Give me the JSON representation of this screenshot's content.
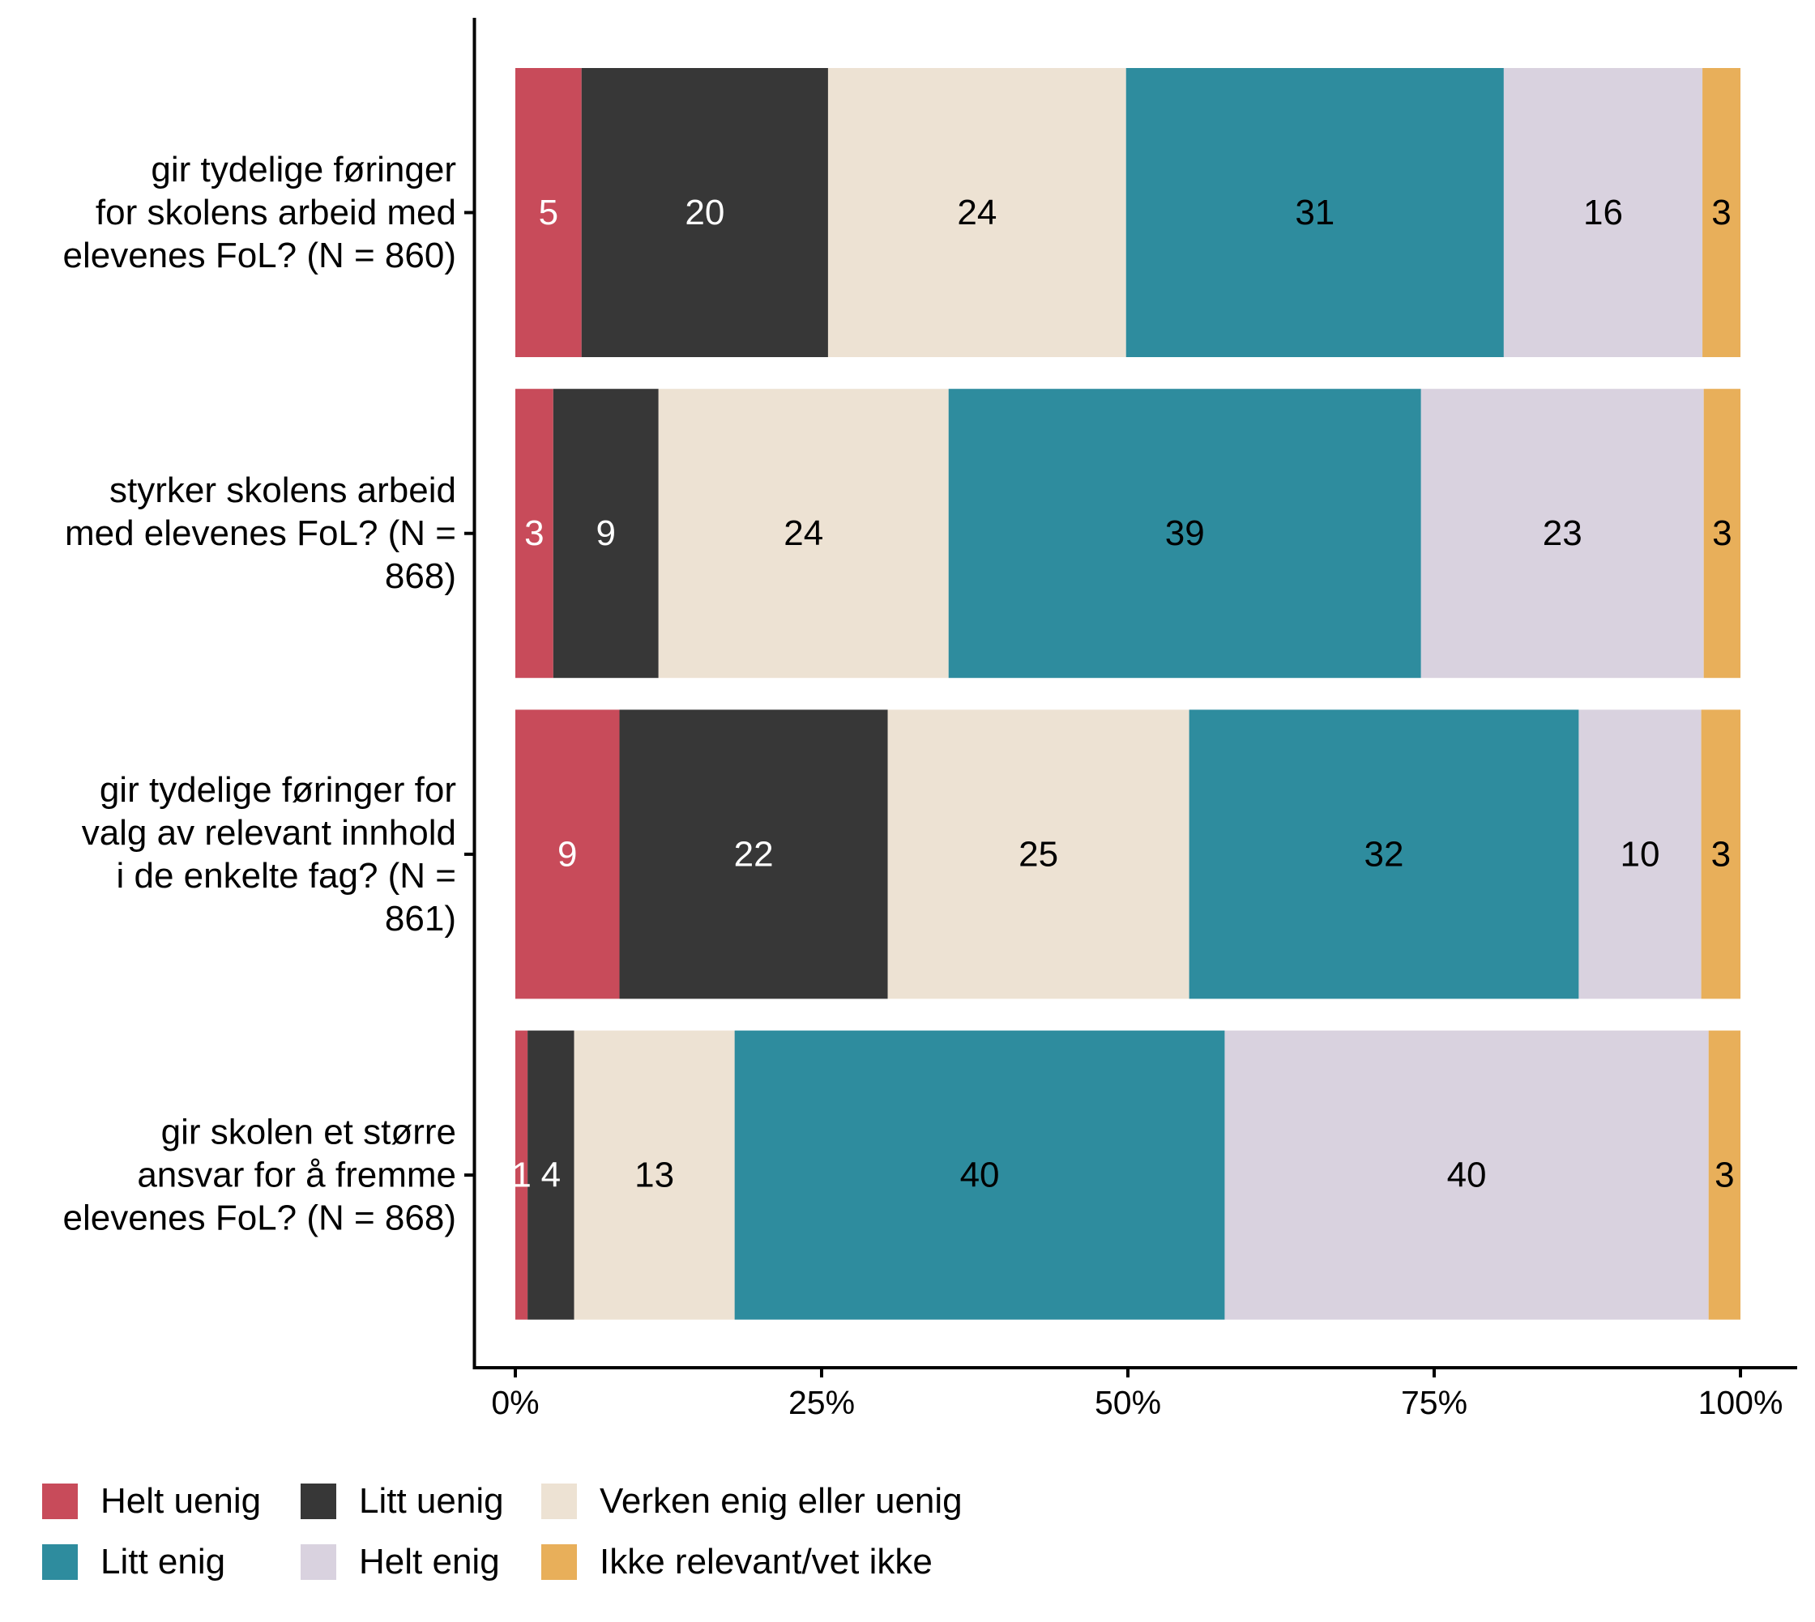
{
  "chart_data": {
    "type": "bar",
    "orientation": "horizontal",
    "stacked": true,
    "percent": true,
    "title": "",
    "xlabel": "",
    "ylabel": "",
    "xlim": [
      0,
      100
    ],
    "x_ticks": [
      "0%",
      "25%",
      "50%",
      "75%",
      "100%"
    ],
    "x_tick_values": [
      0,
      25,
      50,
      75,
      100
    ],
    "grid": false,
    "legend_position": "bottom",
    "categories": [
      "gir tydelige føringer for skolens arbeid med elevenes FoL? (N = 860)",
      "styrker skolens arbeid med elevenes FoL? (N = 868)",
      "gir tydelige føringer for valg av relevant innhold i de enkelte fag? (N = 861)",
      "gir skolen et større ansvar for å fremme elevenes FoL? (N = 868)"
    ],
    "category_label_lines": [
      [
        "gir tydelige føringer",
        "for skolens arbeid med",
        "elevenes FoL? (N = 860)"
      ],
      [
        "styrker skolens arbeid",
        "med elevenes FoL? (N =",
        "868)"
      ],
      [
        "gir tydelige føringer for",
        "valg av relevant innhold",
        "i de enkelte fag? (N =",
        "861)"
      ],
      [
        "gir skolen et større",
        "ansvar for å fremme",
        "elevenes FoL? (N = 868)"
      ]
    ],
    "series": [
      {
        "name": "Helt uenig",
        "color": "#C84B5A",
        "label_color": "#ffffff",
        "values": [
          5,
          3,
          9,
          1
        ],
        "shares": [
          5.4,
          3.1,
          8.5,
          1.0
        ]
      },
      {
        "name": "Litt uenig",
        "color": "#373737",
        "label_color": "#ffffff",
        "values": [
          20,
          9,
          22,
          4
        ],
        "shares": [
          20.1,
          8.6,
          21.9,
          3.8
        ]
      },
      {
        "name": "Verken enig eller uenig",
        "color": "#EDE2D3",
        "label_color": "#000000",
        "values": [
          24,
          24,
          25,
          13
        ],
        "shares": [
          24.3,
          23.7,
          24.6,
          13.1
        ]
      },
      {
        "name": "Litt enig",
        "color": "#2E8C9E",
        "label_color": "#000000",
        "values": [
          31,
          39,
          32,
          40
        ],
        "shares": [
          30.8,
          38.6,
          31.8,
          40.0
        ]
      },
      {
        "name": "Helt enig",
        "color": "#D9D2DF",
        "label_color": "#000000",
        "values": [
          16,
          23,
          10,
          40
        ],
        "shares": [
          16.2,
          23.1,
          10.0,
          39.5
        ]
      },
      {
        "name": "Ikke relevant/vet ikke",
        "color": "#E8AF5A",
        "label_color": "#000000",
        "values": [
          3,
          3,
          3,
          3
        ],
        "shares": [
          3.1,
          3.0,
          3.2,
          2.6
        ]
      }
    ]
  },
  "legend": {
    "rows": [
      [
        "Helt uenig",
        "Litt uenig",
        "Verken enig eller uenig"
      ],
      [
        "Litt enig",
        "Helt enig",
        "Ikke relevant/vet ikke"
      ]
    ]
  }
}
